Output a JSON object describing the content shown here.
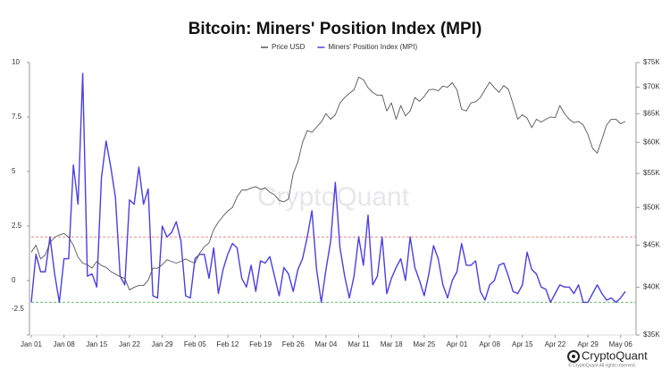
{
  "chart_data": {
    "type": "line",
    "title": "Bitcoin: Miners' Position Index (MPI)",
    "watermark": "CryptoQuant",
    "brand": "CryptoQuant",
    "copyright": "© CryptoQuant All rights reserved.",
    "legend_position": "top",
    "categories": [
      "Jan 01",
      null,
      null,
      null,
      null,
      null,
      null,
      "Jan 08",
      null,
      null,
      null,
      null,
      null,
      null,
      "Jan 15",
      null,
      null,
      null,
      null,
      null,
      null,
      "Jan 22",
      null,
      null,
      null,
      null,
      null,
      null,
      "Jan 29",
      null,
      null,
      null,
      null,
      null,
      null,
      "Feb 05",
      null,
      null,
      null,
      null,
      null,
      null,
      "Feb 12",
      null,
      null,
      null,
      null,
      null,
      null,
      "Feb 19",
      null,
      null,
      null,
      null,
      null,
      null,
      "Feb 26",
      null,
      null,
      null,
      null,
      null,
      null,
      "Mar 04",
      null,
      null,
      null,
      null,
      null,
      null,
      "Mar 11",
      null,
      null,
      null,
      null,
      null,
      null,
      "Mar 18",
      null,
      null,
      null,
      null,
      null,
      null,
      "Mar 25",
      null,
      null,
      null,
      null,
      null,
      null,
      "Apr 01",
      null,
      null,
      null,
      null,
      null,
      null,
      "Apr 08",
      null,
      null,
      null,
      null,
      null,
      null,
      "Apr 15",
      null,
      null,
      null,
      null,
      null,
      null,
      "Apr 22",
      null,
      null,
      null,
      null,
      null,
      null,
      "Apr 29",
      null,
      null,
      null,
      null,
      null,
      null,
      "May 06",
      null
    ],
    "ylim": [
      -2.5,
      10
    ],
    "yticks": [
      10,
      7.5,
      5,
      2.5,
      0,
      -2.5
    ],
    "y2lim": [
      35,
      75
    ],
    "y2log": true,
    "y2ticks": [
      {
        "value": 75,
        "label": "$75K"
      },
      {
        "value": 70,
        "label": "$70K"
      },
      {
        "value": 65,
        "label": "$65K"
      },
      {
        "value": 60,
        "label": "$60K"
      },
      {
        "value": 55,
        "label": "$55K"
      },
      {
        "value": 50,
        "label": "$50K"
      },
      {
        "value": 45,
        "label": "$45K"
      },
      {
        "value": 40,
        "label": "$40K"
      },
      {
        "value": 35,
        "label": "$35K"
      }
    ],
    "reference_lines": [
      {
        "value": 2,
        "color": "#e88a8a"
      },
      {
        "value": -1,
        "color": "#6fbf6f"
      }
    ],
    "series": [
      {
        "name": "Price USD",
        "color": "#555555",
        "axis": "y2",
        "values": [
          44.1,
          45.0,
          43.3,
          43.8,
          45.3,
          46.0,
          46.3,
          46.5,
          46.0,
          45.0,
          43.5,
          42.8,
          42.6,
          42.2,
          43.0,
          42.5,
          42.3,
          41.8,
          41.5,
          41.2,
          41.0,
          39.7,
          40.0,
          40.2,
          40.2,
          40.8,
          42.2,
          42.2,
          42.6,
          43.2,
          43.0,
          42.8,
          43.0,
          43.3,
          43.0,
          42.8,
          44.0,
          44.8,
          45.3,
          47.0,
          48.0,
          48.8,
          49.5,
          50.0,
          51.5,
          52.5,
          52.5,
          52.8,
          53.0,
          52.6,
          52.8,
          52.2,
          51.8,
          51.0,
          50.8,
          51.2,
          55.0,
          56.8,
          60.0,
          62.0,
          61.7,
          62.6,
          63.5,
          65.0,
          64.0,
          64.8,
          67.0,
          68.0,
          68.8,
          69.5,
          72.0,
          71.5,
          69.9,
          69.0,
          68.4,
          68.5,
          65.5,
          67.0,
          64.0,
          66.5,
          64.6,
          65.5,
          68.0,
          67.3,
          68.2,
          69.5,
          69.6,
          69.3,
          70.2,
          70.0,
          70.9,
          69.5,
          65.8,
          65.5,
          67.0,
          67.2,
          68.0,
          69.5,
          71.0,
          69.9,
          69.0,
          70.3,
          69.6,
          66.8,
          64.0,
          64.8,
          64.2,
          62.5,
          64.0,
          63.5,
          64.0,
          64.4,
          64.3,
          66.5,
          65.0,
          64.0,
          63.4,
          63.6,
          63.0,
          61.3,
          59.0,
          58.2,
          60.5,
          63.0,
          64.0,
          64.0,
          63.2,
          63.6
        ]
      },
      {
        "name": "Miners' Position Index (MPI)",
        "color": "#4b3fe0",
        "values": [
          -1.0,
          1.2,
          0.4,
          0.4,
          2.0,
          0.3,
          -1.0,
          1.0,
          1.0,
          5.3,
          3.5,
          9.5,
          0.2,
          0.3,
          -0.3,
          4.7,
          6.4,
          5.2,
          3.8,
          0.2,
          -0.2,
          3.7,
          3.5,
          5.2,
          3.5,
          4.2,
          -0.7,
          -0.8,
          2.5,
          2.0,
          2.2,
          2.7,
          1.8,
          -0.7,
          -0.8,
          1.0,
          1.2,
          1.2,
          0.1,
          1.5,
          -0.6,
          0.5,
          1.2,
          1.7,
          1.5,
          0.1,
          -0.3,
          0.7,
          -0.5,
          0.9,
          0.8,
          1.1,
          0.2,
          -0.7,
          0.6,
          0.3,
          -0.5,
          0.5,
          1.0,
          2.0,
          3.2,
          0.5,
          -1.0,
          0.5,
          1.8,
          4.5,
          1.5,
          0.2,
          -0.8,
          0.2,
          2.0,
          0.7,
          3.0,
          -0.2,
          0.2,
          2.0,
          -0.6,
          0.1,
          0.6,
          1.0,
          0.0,
          2.0,
          0.6,
          0.0,
          -0.7,
          0.3,
          1.6,
          1.0,
          -0.2,
          -0.8,
          0.0,
          0.4,
          1.7,
          0.7,
          0.7,
          0.9,
          -0.5,
          -0.9,
          -0.2,
          0.0,
          0.7,
          0.8,
          0.2,
          -0.5,
          -0.6,
          -0.2,
          1.3,
          0.5,
          0.3,
          -0.3,
          -0.4,
          -1.0,
          -0.6,
          -0.2,
          -0.3,
          -0.3,
          -0.6,
          -0.2,
          -1.0,
          -1.0,
          -0.6,
          -0.2,
          -0.6,
          -0.9,
          -0.8,
          -1.0,
          -0.8,
          -0.5
        ]
      }
    ]
  }
}
